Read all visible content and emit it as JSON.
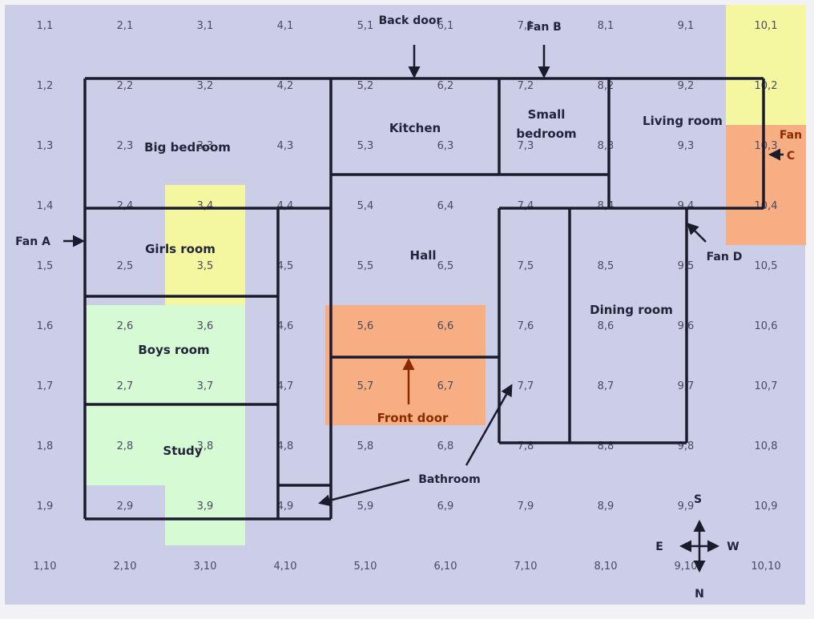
{
  "grid": {
    "cols": [
      1,
      2,
      3,
      4,
      5,
      6,
      7,
      8,
      9,
      10
    ],
    "rows": [
      1,
      2,
      3,
      4,
      5,
      6,
      7,
      8,
      9,
      10
    ]
  },
  "rooms": {
    "big_bedroom": "Big bedroom",
    "kitchen": "Kitchen",
    "small_bedroom_line1": "Small",
    "small_bedroom_line2": "bedroom",
    "living_room": "Living room",
    "girls_room": "Girls room",
    "hall": "Hall",
    "dining_room": "Dining room",
    "boys_room": "Boys room",
    "study": "Study"
  },
  "labels": {
    "back_door": "Back door",
    "fan_a": "Fan A",
    "fan_b": "Fan B",
    "fan_c_line1": "Fan",
    "fan_c_line2": "C",
    "fan_d": "Fan D",
    "front_door": "Front door",
    "bathroom": "Bathroom"
  },
  "compass": {
    "s": "S",
    "e": "E",
    "w": "W",
    "n": "N"
  },
  "colors": {
    "background": "#cccde6",
    "highlight_yellow": "#f5f7a0",
    "highlight_orange": "#f7ae82",
    "highlight_green": "#d6fbd4",
    "wall": "#1b1b2e"
  }
}
